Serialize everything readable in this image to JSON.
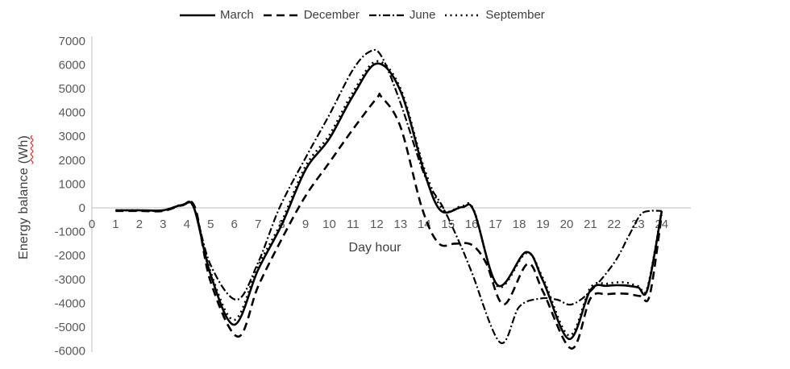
{
  "legend": {
    "items": [
      {
        "label": "March",
        "dash": ""
      },
      {
        "label": "December",
        "dash": "10 6"
      },
      {
        "label": "June",
        "dash": "9 3 2 3"
      },
      {
        "label": "September",
        "dash": "2 4.5"
      }
    ]
  },
  "colors": {
    "series": "#000000",
    "axis_line": "#bfbfbf",
    "tick_label": "#595959",
    "spellcheck_underline": "#ff0000"
  },
  "chart_data": {
    "type": "line",
    "title": "",
    "xlabel": "Day hour",
    "ylabel": "Energy balance (Wh)",
    "ylabel_plain": "Energy balance ",
    "ylabel_wavy": "(Wh)",
    "xlim": [
      0,
      25.2
    ],
    "ylim": [
      -6000,
      7000
    ],
    "grid": false,
    "legend_position": "top-center",
    "x_ticks": [
      0,
      1,
      2,
      3,
      4,
      5,
      6,
      7,
      8,
      9,
      10,
      11,
      12,
      13,
      14,
      15,
      16,
      17,
      18,
      19,
      20,
      21,
      22,
      23,
      24
    ],
    "y_ticks": [
      7000,
      6000,
      5000,
      4000,
      3000,
      2000,
      1000,
      0,
      -1000,
      -2000,
      -3000,
      -4000,
      -5000,
      -6000
    ],
    "series": [
      {
        "name": "March",
        "style": "solid",
        "dash": "",
        "points": [
          [
            1,
            -100
          ],
          [
            2,
            -100
          ],
          [
            3,
            -100
          ],
          [
            3.8,
            120
          ],
          [
            4.3,
            0
          ],
          [
            5,
            -2800
          ],
          [
            6,
            -4900
          ],
          [
            7,
            -2600
          ],
          [
            8,
            -700
          ],
          [
            9,
            1600
          ],
          [
            10,
            2900
          ],
          [
            11,
            4700
          ],
          [
            12,
            6050
          ],
          [
            13,
            4900
          ],
          [
            14,
            1500
          ],
          [
            14.7,
            -120
          ],
          [
            15.6,
            30
          ],
          [
            16.1,
            -150
          ],
          [
            17.1,
            -3250
          ],
          [
            18.3,
            -1850
          ],
          [
            19,
            -3050
          ],
          [
            20.1,
            -5500
          ],
          [
            21,
            -3450
          ],
          [
            21.7,
            -3270
          ],
          [
            22.4,
            -3250
          ],
          [
            23,
            -3330
          ],
          [
            23.4,
            -3430
          ],
          [
            24,
            -150
          ]
        ]
      },
      {
        "name": "December",
        "style": "dashed",
        "dash": "10 6",
        "points": [
          [
            1,
            -130
          ],
          [
            2,
            -130
          ],
          [
            3,
            -130
          ],
          [
            3.8,
            100
          ],
          [
            4.35,
            0
          ],
          [
            5,
            -3100
          ],
          [
            6.15,
            -5400
          ],
          [
            7,
            -3300
          ],
          [
            8,
            -1300
          ],
          [
            9,
            500
          ],
          [
            10,
            1900
          ],
          [
            11,
            3300
          ],
          [
            12,
            4600
          ],
          [
            12.2,
            4650
          ],
          [
            13,
            3400
          ],
          [
            13.9,
            0
          ],
          [
            14.6,
            -1480
          ],
          [
            15.3,
            -1500
          ],
          [
            16,
            -1550
          ],
          [
            16.6,
            -2300
          ],
          [
            17.35,
            -4050
          ],
          [
            18.35,
            -2350
          ],
          [
            19,
            -3500
          ],
          [
            20.2,
            -5900
          ],
          [
            21,
            -3800
          ],
          [
            21.7,
            -3620
          ],
          [
            22.5,
            -3600
          ],
          [
            23.1,
            -3700
          ],
          [
            23.5,
            -3650
          ],
          [
            24,
            -300
          ]
        ]
      },
      {
        "name": "June",
        "style": "dashdot",
        "dash": "9 3 2 3",
        "points": [
          [
            1,
            -110
          ],
          [
            2,
            -110
          ],
          [
            3,
            -110
          ],
          [
            3.8,
            110
          ],
          [
            4.3,
            0
          ],
          [
            5,
            -2400
          ],
          [
            6.1,
            -3850
          ],
          [
            7,
            -2300
          ],
          [
            7.9,
            0
          ],
          [
            9,
            2100
          ],
          [
            10,
            3900
          ],
          [
            11,
            5800
          ],
          [
            11.7,
            6550
          ],
          [
            12.2,
            6350
          ],
          [
            13,
            4400
          ],
          [
            14,
            1400
          ],
          [
            14.8,
            0
          ],
          [
            15.5,
            -1500
          ],
          [
            16,
            -2700
          ],
          [
            17.2,
            -5650
          ],
          [
            18,
            -4150
          ],
          [
            18.9,
            -3800
          ],
          [
            19.6,
            -3850
          ],
          [
            20.2,
            -4050
          ],
          [
            21,
            -3500
          ],
          [
            22,
            -2300
          ],
          [
            22.6,
            -1200
          ],
          [
            23.1,
            -300
          ],
          [
            23.5,
            -130
          ],
          [
            24,
            -130
          ]
        ]
      },
      {
        "name": "September",
        "style": "dotted",
        "dash": "2 4.5",
        "points": [
          [
            1,
            -105
          ],
          [
            2,
            -105
          ],
          [
            3,
            -105
          ],
          [
            3.8,
            130
          ],
          [
            4.3,
            0
          ],
          [
            5,
            -2700
          ],
          [
            6,
            -4700
          ],
          [
            7,
            -2450
          ],
          [
            8,
            -550
          ],
          [
            9,
            1750
          ],
          [
            10,
            3050
          ],
          [
            11,
            4850
          ],
          [
            12,
            6150
          ],
          [
            13,
            5000
          ],
          [
            14,
            1650
          ],
          [
            14.8,
            -80
          ],
          [
            15.6,
            80
          ],
          [
            16.1,
            -120
          ],
          [
            17.1,
            -3300
          ],
          [
            18.3,
            -1900
          ],
          [
            19,
            -2950
          ],
          [
            20.1,
            -5350
          ],
          [
            21,
            -3350
          ],
          [
            21.7,
            -3180
          ],
          [
            22.4,
            -3120
          ],
          [
            23,
            -3280
          ],
          [
            23.4,
            -3350
          ],
          [
            24,
            -120
          ]
        ]
      }
    ]
  }
}
